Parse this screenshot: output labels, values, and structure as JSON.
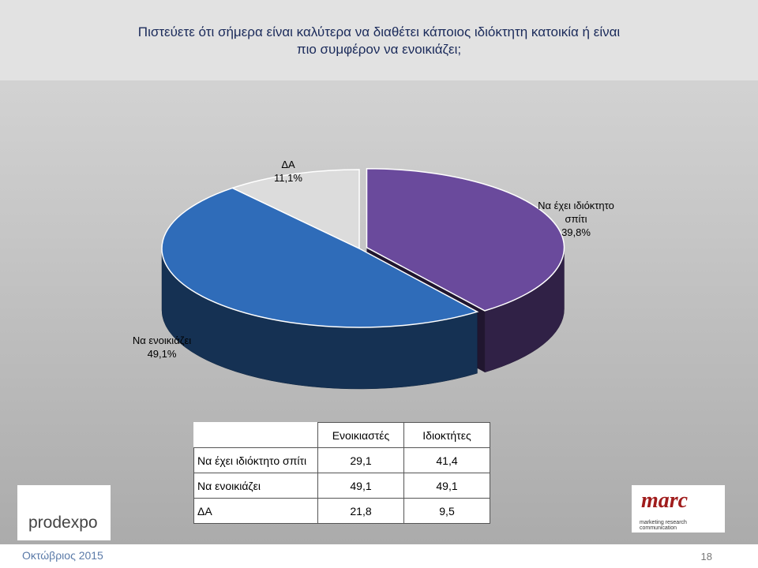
{
  "chart_data": {
    "type": "pie3d",
    "title": "Πιστεύετε ότι σήμερα είναι καλύτερα να διαθέτει κάποιος ιδιόκτητη κατοικία ή είναι πιο συμφέρον να ενοικιάζει;",
    "categories": [
      "Να έχει ιδιόκτητο σπίτι",
      "Να ενοικιάζει",
      "ΔΑ"
    ],
    "values": [
      39.8,
      49.1,
      11.1
    ],
    "value_labels": [
      "39,8%",
      "49,1%",
      "11,1%"
    ],
    "colors": [
      "#6a4a9c",
      "#2f6cb9",
      "#dcdcdc"
    ]
  },
  "table": {
    "columns": [
      "Ενοικιαστές",
      "Ιδιοκτήτες"
    ],
    "rows": [
      {
        "label": "Να έχει ιδιόκτητο σπίτι",
        "cells": [
          "29,1",
          "41,4"
        ]
      },
      {
        "label": "Να ενοικιάζει",
        "cells": [
          "49,1",
          "49,1"
        ]
      },
      {
        "label": "ΔΑ",
        "cells": [
          "21,8",
          "9,5"
        ]
      }
    ]
  },
  "footer": {
    "date": "Οκτώβριος 2015",
    "page": "18",
    "left_logo": "prodexpo",
    "right_logo": "marc",
    "right_logo_tagline": "marketing research communication"
  }
}
